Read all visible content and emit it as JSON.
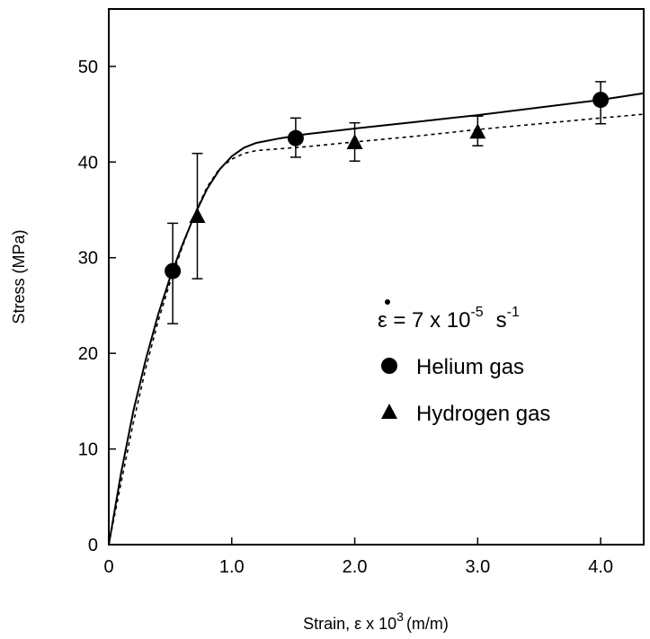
{
  "chart_data": {
    "type": "scatter",
    "title": "",
    "xlabel": "Strain, ε x 10",
    "xlabel_exponent": "3",
    "xlabel_unit": "(m/m)",
    "ylabel": "Stress (MPa)",
    "xlim": [
      0,
      4.35
    ],
    "ylim": [
      0,
      56
    ],
    "x_ticks": [
      0,
      1.0,
      2.0,
      3.0,
      4.0
    ],
    "x_tick_labels": [
      "0",
      "1.0",
      "2.0",
      "3.0",
      "4.0"
    ],
    "y_ticks": [
      0,
      10,
      20,
      30,
      40,
      50
    ],
    "y_tick_labels": [
      "0",
      "10",
      "20",
      "30",
      "40",
      "50"
    ],
    "grid": false,
    "legend": {
      "placement": "center-right",
      "strain_rate_symbol": "ε",
      "strain_rate_text": " = 7 x 10",
      "strain_rate_exp": "-5",
      "strain_rate_unit": "s",
      "strain_rate_unit_exp": "-1"
    },
    "series": [
      {
        "name": "Helium gas",
        "marker": "circle",
        "line_style": "solid",
        "points": [
          {
            "x": 0.52,
            "y": 28.6,
            "err_low": 23.1,
            "err_high": 33.6
          },
          {
            "x": 1.52,
            "y": 42.5,
            "err_low": 40.5,
            "err_high": 44.6
          },
          {
            "x": 4.0,
            "y": 46.5,
            "err_low": 44.0,
            "err_high": 48.4
          }
        ],
        "curve": [
          [
            0,
            0
          ],
          [
            0.1,
            7.5
          ],
          [
            0.2,
            14.0
          ],
          [
            0.3,
            19.3
          ],
          [
            0.4,
            24.0
          ],
          [
            0.5,
            28.0
          ],
          [
            0.6,
            31.4
          ],
          [
            0.7,
            34.5
          ],
          [
            0.8,
            37.2
          ],
          [
            0.9,
            39.2
          ],
          [
            1.0,
            40.6
          ],
          [
            1.1,
            41.5
          ],
          [
            1.2,
            42.0
          ],
          [
            1.4,
            42.5
          ],
          [
            1.6,
            42.9
          ],
          [
            2.0,
            43.5
          ],
          [
            2.5,
            44.2
          ],
          [
            3.0,
            44.9
          ],
          [
            3.5,
            45.7
          ],
          [
            4.0,
            46.5
          ],
          [
            4.35,
            47.2
          ]
        ]
      },
      {
        "name": "Hydrogen gas",
        "marker": "triangle",
        "line_style": "dashed",
        "points": [
          {
            "x": 0.72,
            "y": 34.3,
            "err_low": 27.8,
            "err_high": 40.9
          },
          {
            "x": 2.0,
            "y": 42.0,
            "err_low": 40.1,
            "err_high": 44.1
          },
          {
            "x": 3.0,
            "y": 43.1,
            "err_low": 41.7,
            "err_high": 44.8
          }
        ],
        "curve": [
          [
            0,
            0
          ],
          [
            0.1,
            6.5
          ],
          [
            0.2,
            12.8
          ],
          [
            0.3,
            18.4
          ],
          [
            0.4,
            23.3
          ],
          [
            0.5,
            27.5
          ],
          [
            0.6,
            31.2
          ],
          [
            0.7,
            34.6
          ],
          [
            0.8,
            37.4
          ],
          [
            0.9,
            39.3
          ],
          [
            1.0,
            40.3
          ],
          [
            1.1,
            40.9
          ],
          [
            1.2,
            41.2
          ],
          [
            1.4,
            41.4
          ],
          [
            1.6,
            41.6
          ],
          [
            2.0,
            42.1
          ],
          [
            2.5,
            42.7
          ],
          [
            3.0,
            43.4
          ],
          [
            3.5,
            44.0
          ],
          [
            4.0,
            44.6
          ],
          [
            4.35,
            45.0
          ]
        ]
      }
    ]
  }
}
